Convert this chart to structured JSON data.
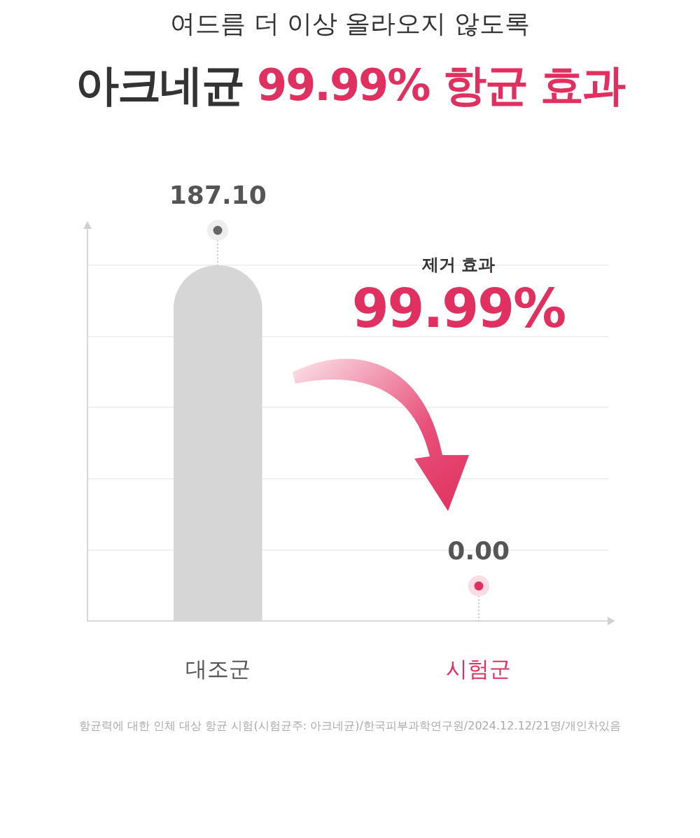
{
  "chart_data": {
    "type": "bar",
    "subtitle": "여드름 더 이상 올라오지 않도록",
    "title": "아크네균 99.99% 항균 효과",
    "categories": [
      "대조군",
      "시험군"
    ],
    "values": [
      187.1,
      0.0
    ],
    "value_labels": [
      "187.10",
      "0.00"
    ],
    "colors": [
      "#d6d6d6",
      "#e0305f"
    ],
    "ylim": [
      0,
      207
    ],
    "yticks": [
      {
        "value": 37.4,
        "label": null
      },
      {
        "value": 74.8,
        "label": null
      },
      {
        "value": 112.3,
        "label": null
      },
      {
        "value": 149.7,
        "label": null
      },
      {
        "value": 187.1,
        "label": null
      }
    ],
    "tick_labels": "x",
    "grid": "y",
    "legend": false,
    "annotations": [
      "제거 효과",
      "99.99%",
      "항균력에 대한 인체 대상 항균 시험(시험균주: 아크네균)/한국피부과학연구원/2024.12.12/21명/개인차있음"
    ]
  }
}
